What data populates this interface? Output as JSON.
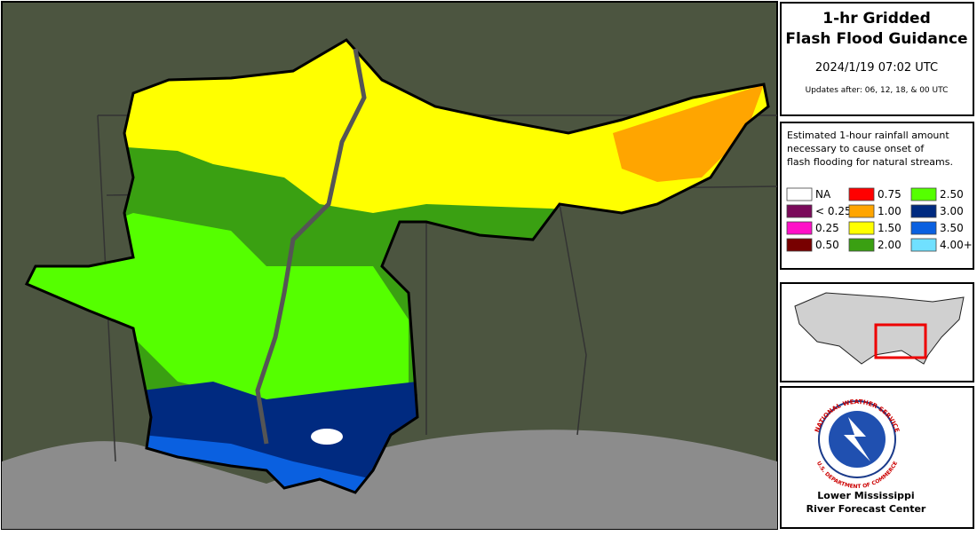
{
  "header": {
    "title_line1": "1-hr Gridded",
    "title_line2": "Flash Flood Guidance",
    "timestamp": "2024/1/19 07:02 UTC",
    "updates": "Updates after: 06, 12, 18, & 00 UTC"
  },
  "legend": {
    "description": [
      "Estimated 1-hour rainfall amount",
      "necessary to cause onset of",
      "flash flooding for natural streams."
    ],
    "items": [
      {
        "label": "NA",
        "color": "#ffffff"
      },
      {
        "label": "< 0.25",
        "color": "#7a0a5a"
      },
      {
        "label": "0.25",
        "color": "#ff10c8"
      },
      {
        "label": "0.50",
        "color": "#780000"
      },
      {
        "label": "0.75",
        "color": "#ff0000"
      },
      {
        "label": "1.00",
        "color": "#ffa500"
      },
      {
        "label": "1.50",
        "color": "#ffff00"
      },
      {
        "label": "2.00",
        "color": "#3aa012"
      },
      {
        "label": "2.50",
        "color": "#55ff00"
      },
      {
        "label": "3.00",
        "color": "#002a80"
      },
      {
        "label": "3.50",
        "color": "#0a60e0"
      },
      {
        "label": "4.00+",
        "color": "#70e0ff"
      }
    ]
  },
  "logo": {
    "ring_top": "NATIONAL WEATHER SERVICE",
    "ring_bottom": "U.S. DEPARTMENT OF COMMERCE",
    "office_line1": "Lower Mississippi",
    "office_line2": "River Forecast Center"
  }
}
